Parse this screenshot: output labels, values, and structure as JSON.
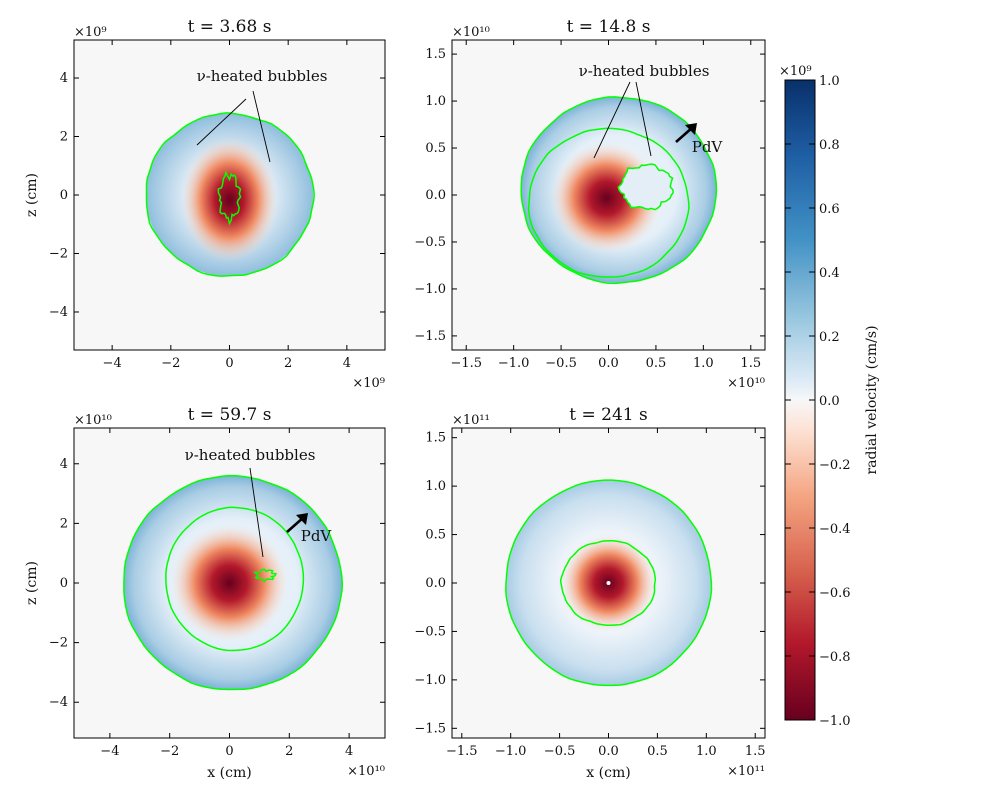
{
  "chart_data": {
    "type": "heatmap",
    "colorbar": {
      "label": "radial velocity (cm/s)",
      "multiplier": "×10⁹",
      "range": [
        -1.0,
        1.0
      ],
      "ticks": [
        "1.0",
        "0.8",
        "0.6",
        "0.4",
        "0.2",
        "0.0",
        "−0.2",
        "−0.4",
        "−0.6",
        "−0.8",
        "−1.0"
      ],
      "tick_values": [
        1.0,
        0.8,
        0.6,
        0.4,
        0.2,
        0.0,
        -0.2,
        -0.4,
        -0.6,
        -0.8,
        -1.0
      ],
      "colors": {
        "max": "#08306b",
        "mid_pos": "#4292c6",
        "light_pos": "#c6dbef",
        "zero": "#f7f7f7",
        "light_neg": "#fddbc7",
        "mid_neg": "#ef8a62",
        "min": "#67001f"
      }
    },
    "contour_color": "#00ff00",
    "panels": [
      {
        "title": "t = 3.68 s",
        "x_multiplier": "×10⁹",
        "y_multiplier": "×10⁹",
        "xlim": [
          -5.3,
          5.3
        ],
        "ylim": [
          -5.3,
          5.3
        ],
        "xticks": [
          -4,
          -2,
          0,
          2,
          4
        ],
        "xtick_labels": [
          "−4",
          "−2",
          "0",
          "2",
          "4"
        ],
        "yticks": [
          -4,
          -2,
          0,
          2,
          4
        ],
        "ytick_labels": [
          "−4",
          "−2",
          "0",
          "2",
          "4"
        ],
        "xlabel": "",
        "ylabel": "z (cm)",
        "shock_radius": 2.8,
        "annotation": "ν-heated bubbles",
        "pdv_label": ""
      },
      {
        "title": "t = 14.8 s",
        "x_multiplier": "×10¹⁰",
        "y_multiplier": "×10¹⁰",
        "xlim": [
          -1.65,
          1.65
        ],
        "ylim": [
          -1.65,
          1.65
        ],
        "xticks": [
          -1.5,
          -1.0,
          -0.5,
          0.0,
          0.5,
          1.0,
          1.5
        ],
        "xtick_labels": [
          "−1.5",
          "−1.0",
          "−0.5",
          "0.0",
          "0.5",
          "1.0",
          "1.5"
        ],
        "yticks": [
          -1.5,
          -1.0,
          -0.5,
          0.0,
          0.5,
          1.0,
          1.5
        ],
        "ytick_labels": [
          "−1.5",
          "−1.0",
          "−0.5",
          "0.0",
          "0.5",
          "1.0",
          "1.5"
        ],
        "xlabel": "",
        "ylabel": "",
        "shock_radius": 0.98,
        "annotation": "ν-heated bubbles",
        "pdv_label": "PdV"
      },
      {
        "title": "t = 59.7 s",
        "x_multiplier": "×10¹⁰",
        "y_multiplier": "×10¹⁰",
        "xlim": [
          -5.2,
          5.2
        ],
        "ylim": [
          -5.2,
          5.2
        ],
        "xticks": [
          -4,
          -2,
          0,
          2,
          4
        ],
        "xtick_labels": [
          "−4",
          "−2",
          "0",
          "2",
          "4"
        ],
        "yticks": [
          -4,
          -2,
          0,
          2,
          4
        ],
        "ytick_labels": [
          "−4",
          "−2",
          "0",
          "2",
          "4"
        ],
        "xlabel": "x (cm)",
        "ylabel": "z (cm)",
        "shock_radius": 3.65,
        "inner_radius": 2.3,
        "annotation": "ν-heated bubbles",
        "pdv_label": "PdV"
      },
      {
        "title": "t = 241 s",
        "x_multiplier": "×10¹¹",
        "y_multiplier": "×10¹¹",
        "xlim": [
          -1.6,
          1.6
        ],
        "ylim": [
          -1.6,
          1.6
        ],
        "xticks": [
          -1.5,
          -1.0,
          -0.5,
          0.0,
          0.5,
          1.0,
          1.5
        ],
        "xtick_labels": [
          "−1.5",
          "−1.0",
          "−0.5",
          "0.0",
          "0.5",
          "1.0",
          "1.5"
        ],
        "yticks": [
          -1.5,
          -1.0,
          -0.5,
          0.0,
          0.5,
          1.0,
          1.5
        ],
        "ytick_labels": [
          "−1.5",
          "−1.0",
          "−0.5",
          "0.0",
          "0.5",
          "1.0",
          "1.5"
        ],
        "xlabel": "x (cm)",
        "ylabel": "",
        "shock_radius": 1.05,
        "inner_radius": 0.48,
        "annotation": "",
        "pdv_label": ""
      }
    ]
  }
}
